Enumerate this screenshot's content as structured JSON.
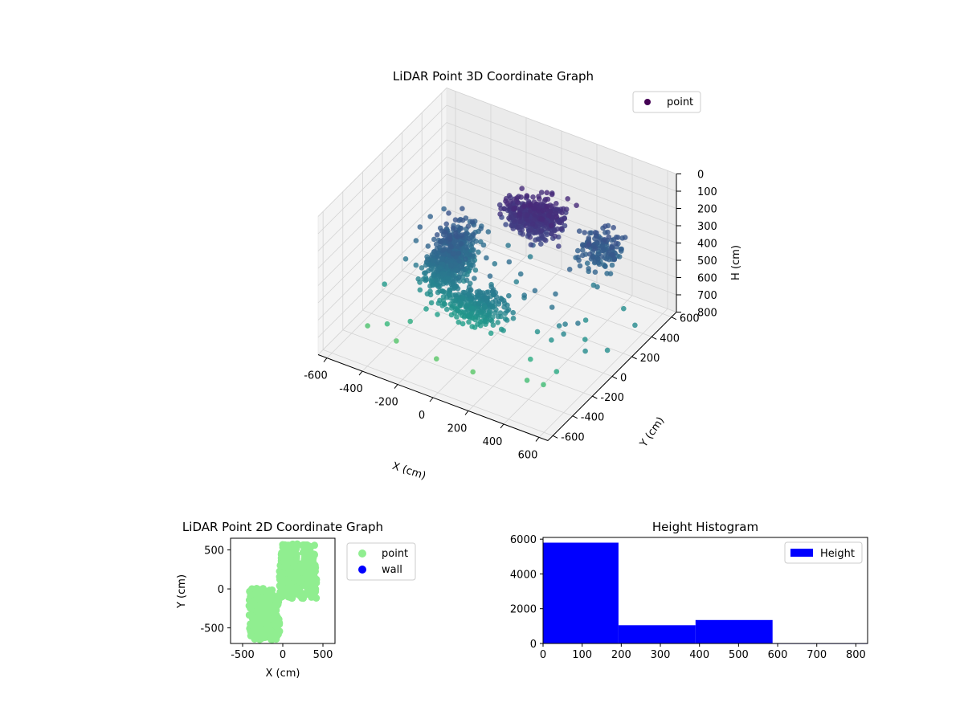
{
  "chart_data": [
    {
      "type": "scatter",
      "title": "LiDAR Point 3D Coordinate Graph",
      "xlabel": "X (cm)",
      "ylabel": "Y (cm)",
      "zlabel": "H (cm)",
      "x_ticks": [
        "-600",
        "-400",
        "-200",
        "0",
        "200",
        "400",
        "600"
      ],
      "y_ticks": [
        "-600",
        "-400",
        "-200",
        "0",
        "200",
        "400",
        "600"
      ],
      "z_ticks": [
        "0",
        "100",
        "200",
        "300",
        "400",
        "500",
        "600",
        "700",
        "800"
      ],
      "z_inverted": true,
      "colormap": "viridis",
      "legend": {
        "position": "upper-right",
        "entries": [
          {
            "label": "point",
            "color": "#440154"
          }
        ]
      },
      "grid": true
    },
    {
      "type": "scatter",
      "title": "LiDAR Point 2D Coordinate Graph",
      "xlabel": "X (cm)",
      "ylabel": "Y (cm)",
      "xlim": [
        -650,
        650
      ],
      "ylim": [
        -700,
        650
      ],
      "x_ticks": [
        "-500",
        "0",
        "500"
      ],
      "y_ticks": [
        "500",
        "0",
        "-500"
      ],
      "legend": {
        "position": "outside-right",
        "entries": [
          {
            "label": "point",
            "color": "#90ee90"
          },
          {
            "label": "wall",
            "color": "#0000ff"
          }
        ]
      },
      "series": [
        {
          "name": "point",
          "color": "#90ee90"
        },
        {
          "name": "wall",
          "color": "#0000ff",
          "points": []
        }
      ]
    },
    {
      "type": "bar",
      "title": "Height Histogram",
      "bins": [
        {
          "from": 0,
          "to": 193,
          "count": 5800
        },
        {
          "from": 193,
          "to": 390,
          "count": 1050
        },
        {
          "from": 390,
          "to": 587,
          "count": 1350
        },
        {
          "from": 587,
          "to": 830,
          "count": 20
        }
      ],
      "xlim": [
        0,
        830
      ],
      "ylim": [
        0,
        6100
      ],
      "x_ticks": [
        "0",
        "100",
        "200",
        "300",
        "400",
        "500",
        "600",
        "700",
        "800"
      ],
      "y_ticks": [
        "0",
        "2000",
        "4000",
        "6000"
      ],
      "color": "#0000ff",
      "legend": {
        "position": "upper-right",
        "entries": [
          {
            "label": "Height",
            "color": "#0000ff"
          }
        ]
      }
    }
  ]
}
